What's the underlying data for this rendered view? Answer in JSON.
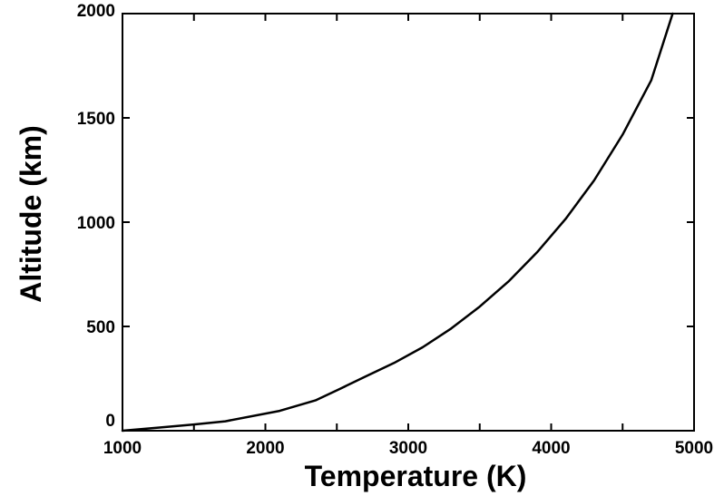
{
  "chart_data": {
    "type": "line",
    "title": "",
    "xlabel": "Temperature (K)",
    "ylabel": "Altitude (km)",
    "xlim": [
      1000,
      5000
    ],
    "ylim": [
      0,
      2000
    ],
    "x_ticks": [
      1000,
      2000,
      3000,
      4000,
      5000
    ],
    "y_ticks": [
      0,
      500,
      1000,
      1500,
      2000
    ],
    "x_tick_labels": [
      "1000",
      "2000",
      "3000",
      "4000",
      "5000"
    ],
    "y_tick_labels": [
      "0",
      "500",
      "1000",
      "1500",
      "2000"
    ],
    "grid": false,
    "legend": "none",
    "series": [
      {
        "color": "#000000",
        "x": [
          1000,
          1250,
          1500,
          1720,
          2100,
          2350,
          2520,
          2700,
          2900,
          3100,
          3300,
          3500,
          3700,
          3900,
          4100,
          4300,
          4500,
          4700,
          4850
        ],
        "y": [
          0,
          15,
          30,
          45,
          95,
          145,
          200,
          260,
          325,
          400,
          490,
          595,
          715,
          855,
          1015,
          1200,
          1420,
          1680,
          2000
        ]
      }
    ]
  }
}
